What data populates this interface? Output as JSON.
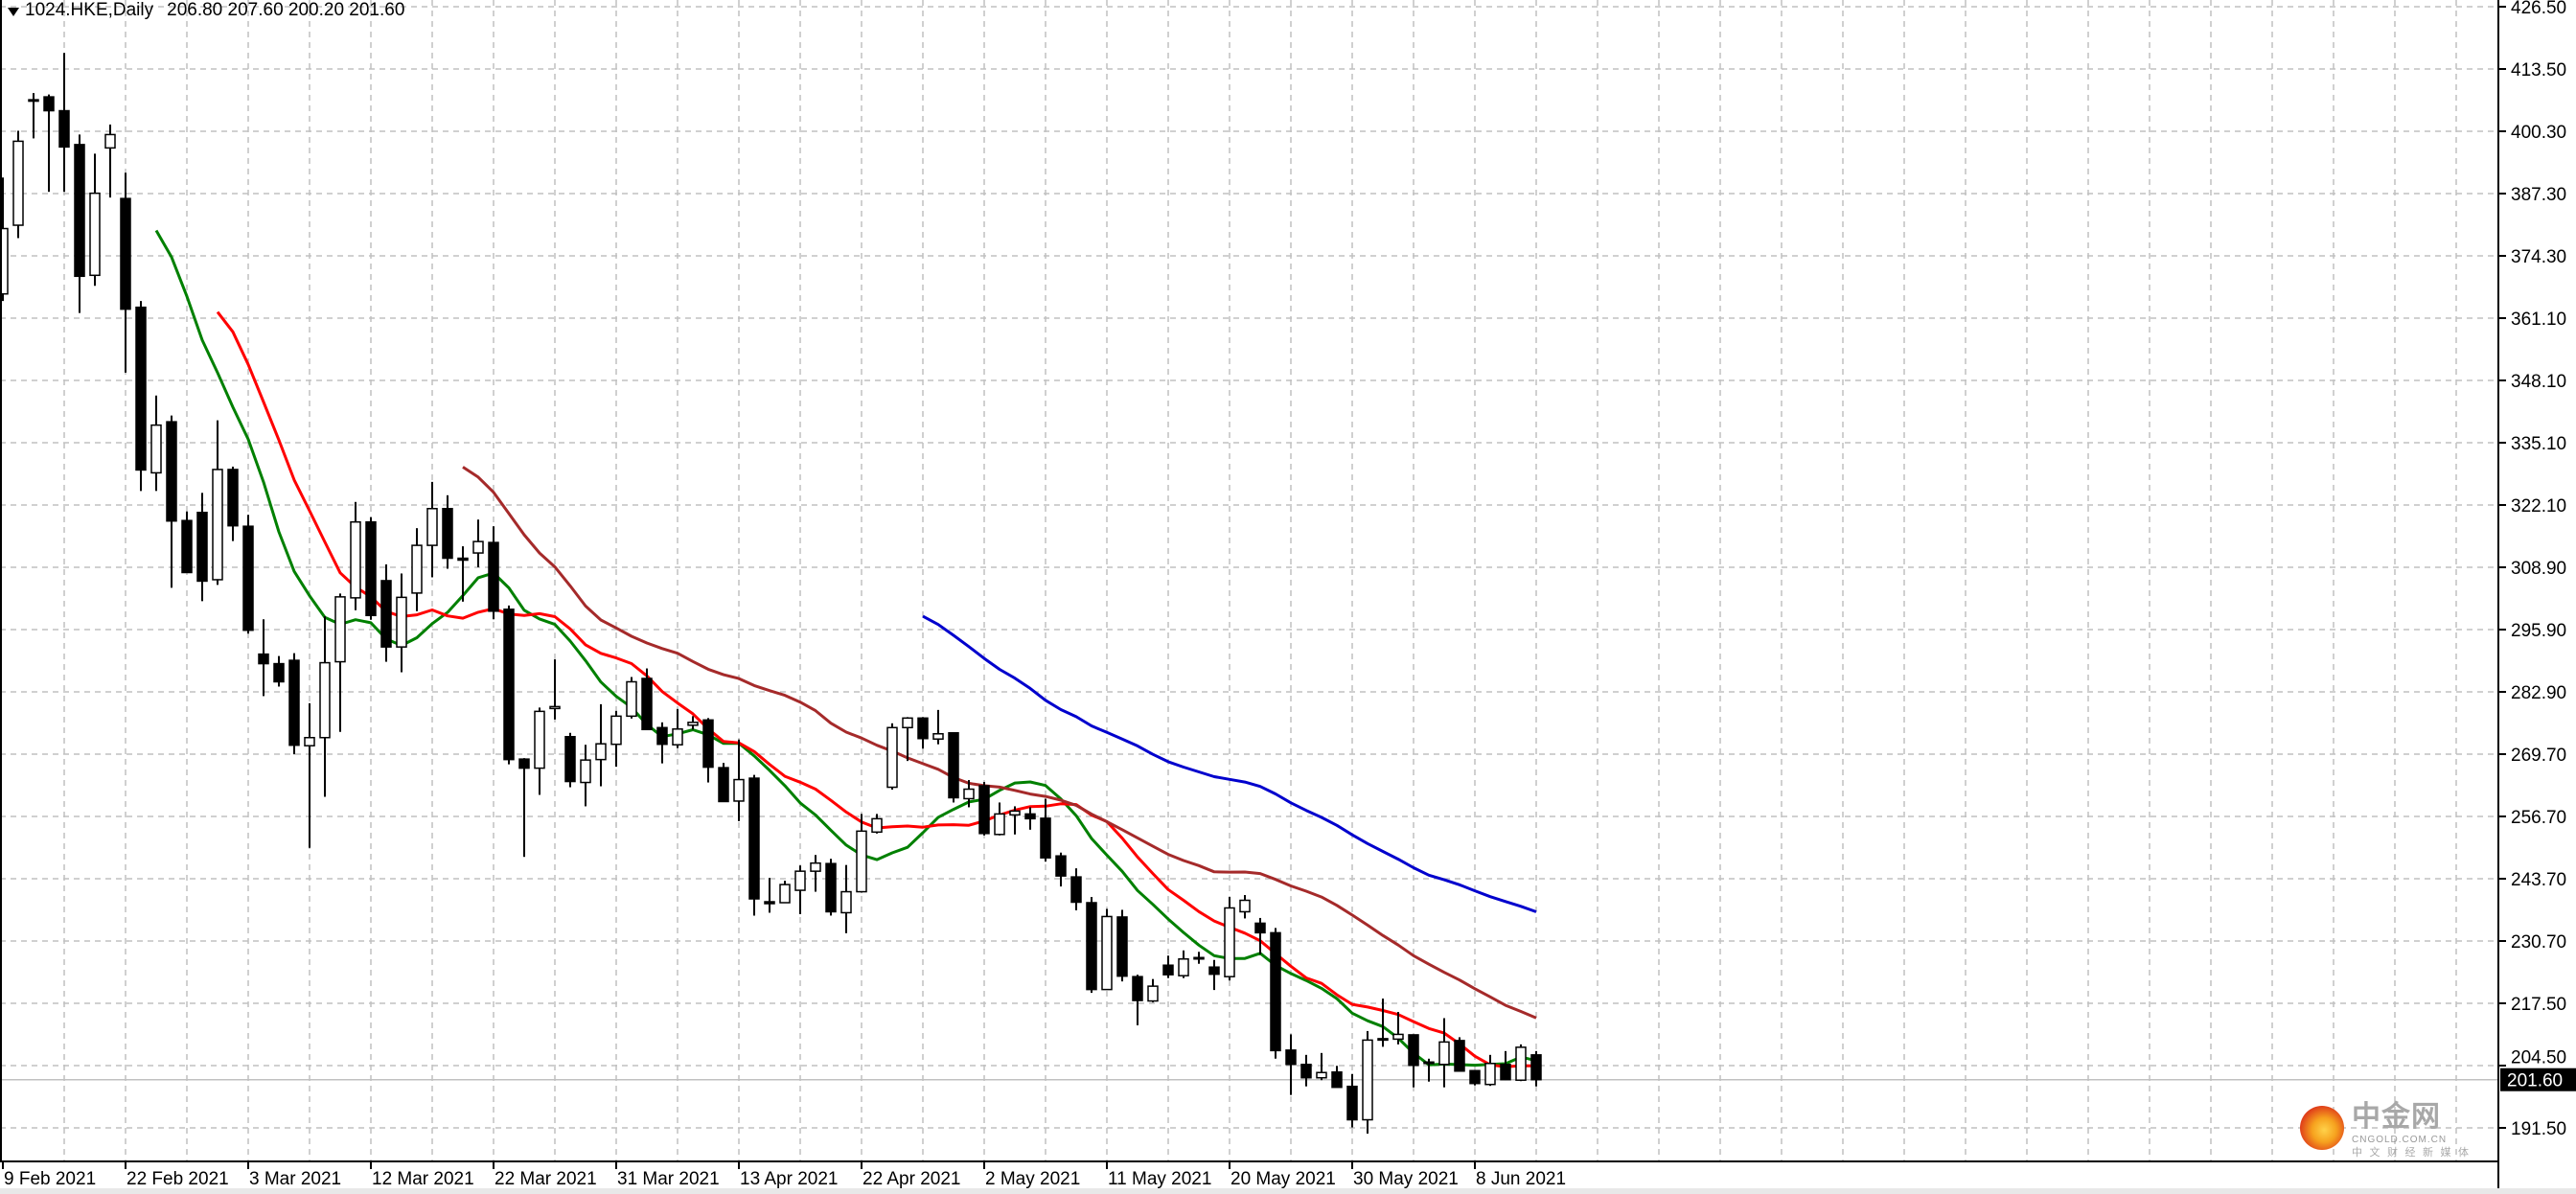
{
  "header": {
    "symbol": "1024.HKE,Daily",
    "ohlc": "206.80 207.60 200.20 201.60"
  },
  "watermark": {
    "logo_text": "中金网",
    "domain": "CNGOLD.COM.CN",
    "tagline": "中 文 财 经 新 媒 体"
  },
  "chart_data": {
    "type": "candlestick",
    "symbol": "1024.HKE",
    "timeframe": "Daily",
    "current_price": 201.6,
    "ylim": [
      191.5,
      426.5
    ],
    "grid": true,
    "colors": {
      "bull_body": "#ffffff",
      "bear_body": "#000000",
      "outline": "#000000",
      "grid": "#c0c0c0",
      "price_line": "#c0c0c0"
    },
    "y_tick_labels": [
      "426.50",
      "413.50",
      "400.30",
      "387.30",
      "374.30",
      "361.10",
      "348.10",
      "335.10",
      "322.10",
      "308.90",
      "295.90",
      "282.90",
      "269.70",
      "256.70",
      "243.70",
      "230.70",
      "217.50",
      "204.50",
      "191.50"
    ],
    "x_tick_labels": [
      "9 Feb 2021",
      "22 Feb 2021",
      "3 Mar 2021",
      "12 Mar 2021",
      "22 Mar 2021",
      "31 Mar 2021",
      "13 Apr 2021",
      "22 Apr 2021",
      "2 May 2021",
      "11 May 2021",
      "20 May 2021",
      "30 May 2021",
      "8 Jun 2021"
    ],
    "x_tick_every_bars": 8,
    "moving_averages": [
      {
        "period": 11,
        "color": "#008000"
      },
      {
        "period": 15,
        "color": "#ff0000"
      },
      {
        "period": 31,
        "color": "#a52a2a"
      },
      {
        "period": 61,
        "color": "#0000cd"
      }
    ],
    "ohlc": [
      [
        366.3,
        390.7,
        364.8,
        380.0
      ],
      [
        380.7,
        400.5,
        378.0,
        398.3
      ],
      [
        406.9,
        408.4,
        398.9,
        407.0
      ],
      [
        407.6,
        408.1,
        387.7,
        404.7
      ],
      [
        404.7,
        416.8,
        387.7,
        397.1
      ],
      [
        397.6,
        399.7,
        362.3,
        370.0
      ],
      [
        370.2,
        395.7,
        368.0,
        387.4
      ],
      [
        396.9,
        401.8,
        386.5,
        399.7
      ],
      [
        386.3,
        391.7,
        349.8,
        363.1
      ],
      [
        363.5,
        364.8,
        325.0,
        329.4
      ],
      [
        328.8,
        345.0,
        325.0,
        338.8
      ],
      [
        339.5,
        340.8,
        304.7,
        318.7
      ],
      [
        318.8,
        320.7,
        307.9,
        307.9
      ],
      [
        320.5,
        324.6,
        301.9,
        306.1
      ],
      [
        306.4,
        339.8,
        305.3,
        329.5
      ],
      [
        329.5,
        330.1,
        314.5,
        317.7
      ],
      [
        317.6,
        320.0,
        295.1,
        295.8
      ],
      [
        290.8,
        298.1,
        282.0,
        288.8
      ],
      [
        288.8,
        290.4,
        284.0,
        285.0
      ],
      [
        289.5,
        291.0,
        269.8,
        271.7
      ],
      [
        271.6,
        280.5,
        250.2,
        273.3
      ],
      [
        273.3,
        298.7,
        260.9,
        289.0
      ],
      [
        289.2,
        303.5,
        274.5,
        302.8
      ],
      [
        302.6,
        322.7,
        300.0,
        318.5
      ],
      [
        318.5,
        319.5,
        298.0,
        298.9
      ],
      [
        306.2,
        309.6,
        289.2,
        292.3
      ],
      [
        292.3,
        307.7,
        287.0,
        302.7
      ],
      [
        303.6,
        317.2,
        299.8,
        313.6
      ],
      [
        313.6,
        326.9,
        306.9,
        321.3
      ],
      [
        321.3,
        324.1,
        308.7,
        310.9
      ],
      [
        310.9,
        313.4,
        301.8,
        310.5
      ],
      [
        312.0,
        319.0,
        309.0,
        314.4
      ],
      [
        314.2,
        317.6,
        298.1,
        299.8
      ],
      [
        300.2,
        301.0,
        267.7,
        268.7
      ],
      [
        268.8,
        269.0,
        248.3,
        266.9
      ],
      [
        266.9,
        279.6,
        261.3,
        278.8
      ],
      [
        279.4,
        289.7,
        277.1,
        279.8
      ],
      [
        273.5,
        274.3,
        262.9,
        264.1
      ],
      [
        263.9,
        271.8,
        258.9,
        268.6
      ],
      [
        268.7,
        280.3,
        263.1,
        272.0
      ],
      [
        271.9,
        278.9,
        267.2,
        277.8
      ],
      [
        277.8,
        286.0,
        277.3,
        285.0
      ],
      [
        285.7,
        287.8,
        274.9,
        275.0
      ],
      [
        275.4,
        276.5,
        267.9,
        271.9
      ],
      [
        271.8,
        279.3,
        271.1,
        275.1
      ],
      [
        275.9,
        277.8,
        275.0,
        276.5
      ],
      [
        277.0,
        277.4,
        263.9,
        267.1
      ],
      [
        267.0,
        268.0,
        259.9,
        259.9
      ],
      [
        260.0,
        272.9,
        255.8,
        264.5
      ],
      [
        264.8,
        265.5,
        236.0,
        239.5
      ],
      [
        238.9,
        243.9,
        236.6,
        238.5
      ],
      [
        238.7,
        243.3,
        238.7,
        242.5
      ],
      [
        241.3,
        246.5,
        236.3,
        245.3
      ],
      [
        245.3,
        248.7,
        241.0,
        247.0
      ],
      [
        246.9,
        247.9,
        236.0,
        236.8
      ],
      [
        236.6,
        246.6,
        232.3,
        241.0
      ],
      [
        241.0,
        257.3,
        240.8,
        253.7
      ],
      [
        253.5,
        257.3,
        253.2,
        256.3
      ],
      [
        262.9,
        276.3,
        262.4,
        275.4
      ],
      [
        275.4,
        277.6,
        268.4,
        277.4
      ],
      [
        277.4,
        277.6,
        271.0,
        273.1
      ],
      [
        273.0,
        279.1,
        271.9,
        274.1
      ],
      [
        274.3,
        274.4,
        259.7,
        260.7
      ],
      [
        260.5,
        264.4,
        258.7,
        262.5
      ],
      [
        263.2,
        264.0,
        252.8,
        253.2
      ],
      [
        253.0,
        259.7,
        252.8,
        257.3
      ],
      [
        257.1,
        258.9,
        253.0,
        257.9
      ],
      [
        257.3,
        258.7,
        254.0,
        256.3
      ],
      [
        256.4,
        260.5,
        247.3,
        248.1
      ],
      [
        248.5,
        249.2,
        242.1,
        244.3
      ],
      [
        244.1,
        245.9,
        237.1,
        238.8
      ],
      [
        238.7,
        239.9,
        219.8,
        220.5
      ],
      [
        220.5,
        237.4,
        220.5,
        235.8
      ],
      [
        235.7,
        237.2,
        222.2,
        223.3
      ],
      [
        223.2,
        223.6,
        213.0,
        218.2
      ],
      [
        218.1,
        222.7,
        217.8,
        221.2
      ],
      [
        225.6,
        227.6,
        222.9,
        223.6
      ],
      [
        223.4,
        228.7,
        222.9,
        226.9
      ],
      [
        226.9,
        228.4,
        225.9,
        227.2
      ],
      [
        225.2,
        226.7,
        220.4,
        223.7
      ],
      [
        223.2,
        239.9,
        222.4,
        237.6
      ],
      [
        236.8,
        240.3,
        235.4,
        239.2
      ],
      [
        234.4,
        235.5,
        227.9,
        232.4
      ],
      [
        232.4,
        233.4,
        206.0,
        207.7
      ],
      [
        207.8,
        211.1,
        198.4,
        204.8
      ],
      [
        204.8,
        206.8,
        200.2,
        202.0
      ],
      [
        202.0,
        207.2,
        201.5,
        203.1
      ],
      [
        203.2,
        204.5,
        200.0,
        200.0
      ],
      [
        200.2,
        202.8,
        191.6,
        193.2
      ],
      [
        193.2,
        211.8,
        190.3,
        209.9
      ],
      [
        210.0,
        218.6,
        208.5,
        210.2
      ],
      [
        210.1,
        215.8,
        209.0,
        211.1
      ],
      [
        211.0,
        211.1,
        200.0,
        204.6
      ],
      [
        205.1,
        206.0,
        201.2,
        205.3
      ],
      [
        204.8,
        214.5,
        200.0,
        209.5
      ],
      [
        209.8,
        210.5,
        203.3,
        203.4
      ],
      [
        203.5,
        203.6,
        200.4,
        200.8
      ],
      [
        200.6,
        206.8,
        200.3,
        205.0
      ],
      [
        204.8,
        207.6,
        201.5,
        201.6
      ],
      [
        201.5,
        209.0,
        201.3,
        208.4
      ],
      [
        206.8,
        207.6,
        200.2,
        201.6
      ]
    ]
  }
}
